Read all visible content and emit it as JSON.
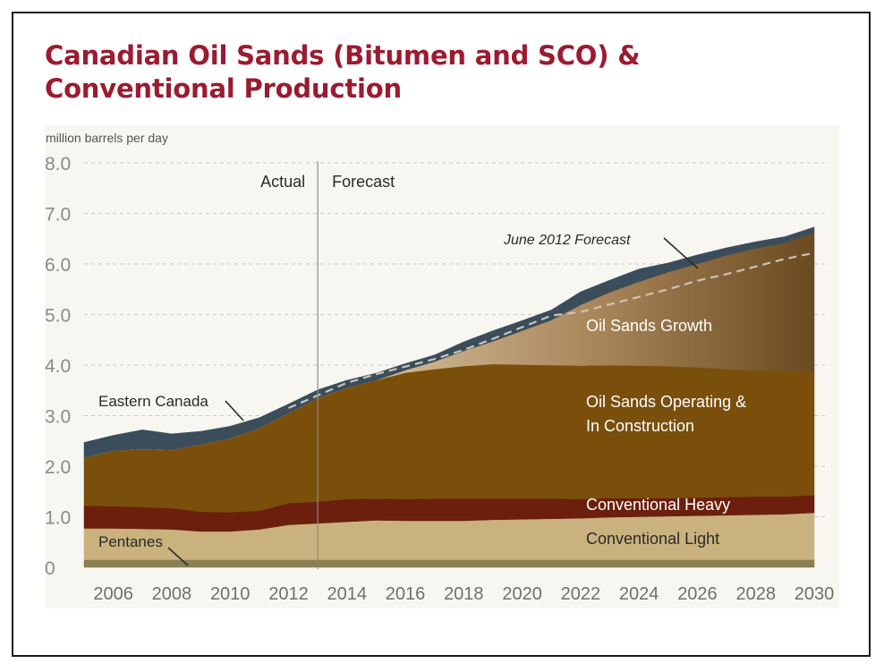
{
  "slide": {
    "title": "Canadian Oil Sands (Bitumen and SCO) & Conventional Production"
  },
  "chart_data": {
    "type": "area",
    "stacked": true,
    "ylabel": "million barrels per day",
    "ylim": [
      0,
      8
    ],
    "xlim": [
      2005,
      2030
    ],
    "ytick_labels": [
      "0",
      "1.0",
      "2.0",
      "3.0",
      "4.0",
      "5.0",
      "6.0",
      "7.0",
      "8.0"
    ],
    "x_ticks": [
      2006,
      2008,
      2010,
      2012,
      2014,
      2016,
      2018,
      2020,
      2022,
      2024,
      2026,
      2028,
      2030
    ],
    "grid": "horizontal dashed",
    "divider": {
      "x": 2013,
      "left_label": "Actual",
      "right_label": "Forecast"
    },
    "x": [
      2005,
      2006,
      2007,
      2008,
      2009,
      2010,
      2011,
      2012,
      2013,
      2014,
      2015,
      2016,
      2017,
      2018,
      2019,
      2020,
      2021,
      2022,
      2023,
      2024,
      2025,
      2026,
      2027,
      2028,
      2029,
      2030
    ],
    "series": [
      {
        "name": "Pentanes",
        "color": "#8a7f52",
        "values": [
          0.15,
          0.15,
          0.15,
          0.15,
          0.15,
          0.15,
          0.15,
          0.15,
          0.15,
          0.15,
          0.15,
          0.15,
          0.15,
          0.15,
          0.15,
          0.15,
          0.15,
          0.15,
          0.15,
          0.15,
          0.15,
          0.15,
          0.15,
          0.15,
          0.15,
          0.15
        ]
      },
      {
        "name": "Conventional Light",
        "color": "#c9b27d",
        "values": [
          0.62,
          0.62,
          0.61,
          0.6,
          0.56,
          0.56,
          0.6,
          0.69,
          0.72,
          0.75,
          0.78,
          0.77,
          0.77,
          0.77,
          0.79,
          0.8,
          0.81,
          0.82,
          0.84,
          0.85,
          0.86,
          0.87,
          0.88,
          0.89,
          0.9,
          0.93
        ]
      },
      {
        "name": "Conventional Heavy",
        "color": "#6b1f0c",
        "values": [
          0.45,
          0.44,
          0.43,
          0.42,
          0.39,
          0.38,
          0.37,
          0.43,
          0.43,
          0.45,
          0.43,
          0.43,
          0.44,
          0.44,
          0.42,
          0.41,
          0.4,
          0.38,
          0.38,
          0.37,
          0.36,
          0.36,
          0.36,
          0.36,
          0.35,
          0.35
        ]
      },
      {
        "name": "Oil Sands Operating & In Construction",
        "color": "#7a4f0c",
        "values": [
          0.95,
          1.1,
          1.15,
          1.15,
          1.33,
          1.46,
          1.63,
          1.78,
          2.05,
          2.2,
          2.34,
          2.5,
          2.56,
          2.62,
          2.66,
          2.65,
          2.64,
          2.64,
          2.63,
          2.62,
          2.61,
          2.58,
          2.53,
          2.5,
          2.48,
          2.46
        ]
      },
      {
        "name": "Oil Sands Growth",
        "color": "#a07a45",
        "values": [
          0,
          0,
          0,
          0,
          0,
          0,
          0,
          0,
          0,
          0,
          0,
          0.05,
          0.15,
          0.3,
          0.45,
          0.67,
          0.89,
          1.2,
          1.44,
          1.66,
          1.86,
          2.04,
          2.25,
          2.41,
          2.54,
          2.74
        ]
      },
      {
        "name": "Eastern Canada",
        "color": "#3b4d5a",
        "values": [
          0.3,
          0.3,
          0.38,
          0.32,
          0.26,
          0.24,
          0.21,
          0.18,
          0.16,
          0.15,
          0.14,
          0.13,
          0.13,
          0.18,
          0.21,
          0.2,
          0.2,
          0.26,
          0.24,
          0.25,
          0.18,
          0.18,
          0.15,
          0.13,
          0.12,
          0.1
        ]
      }
    ],
    "reference_line": {
      "name": "June 2012 Forecast",
      "style": "dashed",
      "color": "#c9c3bb",
      "x": [
        2012,
        2013,
        2014,
        2015,
        2016,
        2017,
        2018,
        2019,
        2020,
        2021,
        2022,
        2023,
        2024,
        2025,
        2026,
        2027,
        2028,
        2029,
        2030
      ],
      "values": [
        3.15,
        3.4,
        3.65,
        3.82,
        3.97,
        4.12,
        4.3,
        4.52,
        4.75,
        4.98,
        5.05,
        5.2,
        5.35,
        5.5,
        5.67,
        5.8,
        5.95,
        6.1,
        6.22
      ]
    },
    "annotations": [
      {
        "text": "Eastern Canada",
        "series": "Eastern Canada"
      },
      {
        "text": "Pentanes",
        "series": "Pentanes"
      },
      {
        "text": "June 2012 Forecast",
        "series": "June 2012 Forecast"
      },
      {
        "text": "Oil Sands Growth"
      },
      {
        "text": "Oil Sands Operating &"
      },
      {
        "text": "In Construction"
      },
      {
        "text": "Conventional Heavy"
      },
      {
        "text": "Conventional Light"
      }
    ]
  }
}
